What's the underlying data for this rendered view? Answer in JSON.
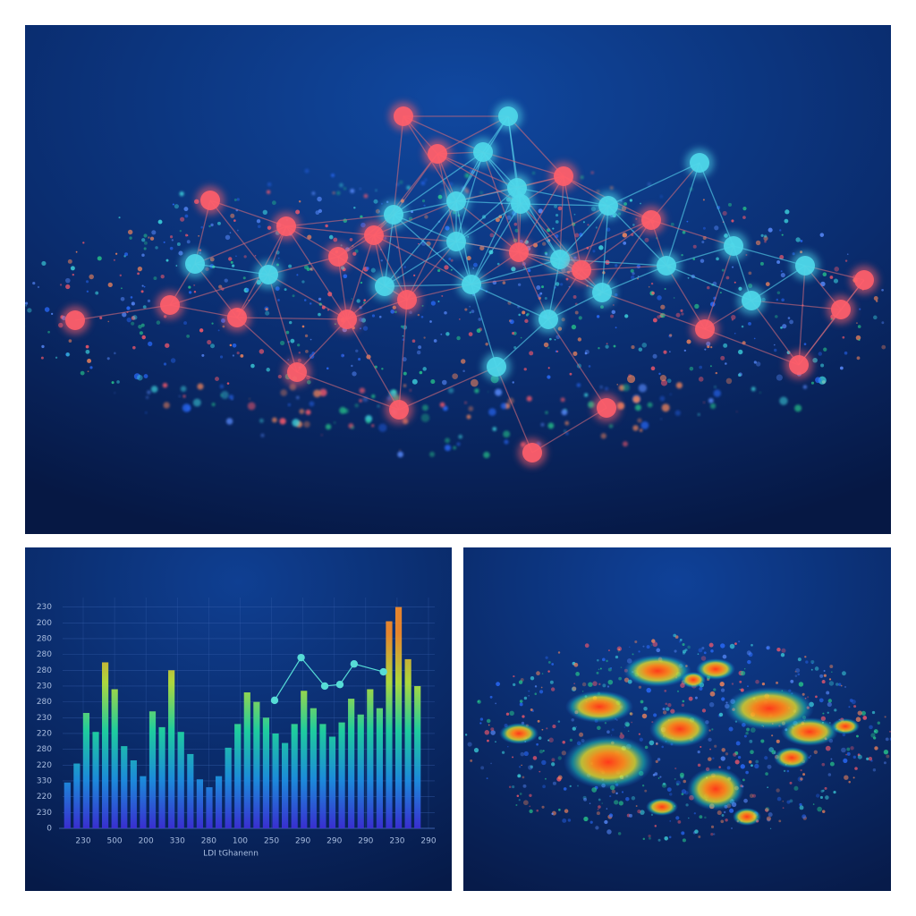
{
  "chart_data": {
    "type": "bar",
    "categories": [
      null,
      null,
      null,
      null,
      null,
      null,
      null,
      null,
      null,
      null,
      null,
      null,
      null,
      null,
      null,
      null,
      null,
      null,
      null,
      null,
      null,
      null,
      null,
      null,
      null,
      null,
      null,
      null,
      null,
      null,
      null,
      null,
      null,
      null,
      null,
      null,
      null,
      null
    ],
    "values": [
      2.9,
      4.1,
      7.3,
      6.1,
      10.5,
      8.8,
      5.2,
      4.3,
      3.3,
      7.4,
      6.4,
      10,
      6.1,
      4.7,
      3.1,
      2.6,
      3.3,
      5.1,
      6.6,
      8.6,
      8,
      7,
      6,
      5.4,
      6.6,
      8.7,
      7.6,
      6.6,
      5.8,
      6.7,
      8.2,
      7.2,
      8.8,
      7.6,
      13.1,
      14,
      10.7,
      9
    ],
    "colors": [
      "#3b2fd6",
      "#1d8fe0",
      "#1fd4a0",
      "#b6e03a",
      "#f0892a"
    ],
    "ylim": [
      0,
      14.6
    ],
    "yticks": [
      0,
      {
        "value": 1,
        "label": "230"
      },
      {
        "value": 2,
        "label": "220"
      },
      {
        "value": 3,
        "label": "330"
      },
      {
        "value": 4,
        "label": "220"
      },
      {
        "value": 5,
        "label": "280"
      },
      {
        "value": 6,
        "label": "220"
      },
      {
        "value": 7,
        "label": "230"
      },
      {
        "value": 8,
        "label": "280"
      },
      {
        "value": 9,
        "label": "230"
      },
      {
        "value": 10,
        "label": "280"
      },
      {
        "value": 11,
        "label": "280"
      },
      {
        "value": 12,
        "label": "280"
      },
      {
        "value": 13,
        "label": "200"
      },
      {
        "value": 14,
        "label": "230"
      }
    ],
    "x_labels": [
      "230",
      "500",
      "200",
      "330",
      "280",
      "100",
      "250",
      "290",
      "290",
      "290",
      "230",
      "290"
    ],
    "x_title": "LDI tGhanenn",
    "grid": true,
    "line": {
      "color": "#56dcd6",
      "x": [
        21.9,
        24.7,
        27.2,
        28.8,
        30.3,
        33.4
      ],
      "values": [
        8.1,
        10.8,
        9.0,
        9.1,
        10.4,
        9.9
      ]
    }
  }
}
